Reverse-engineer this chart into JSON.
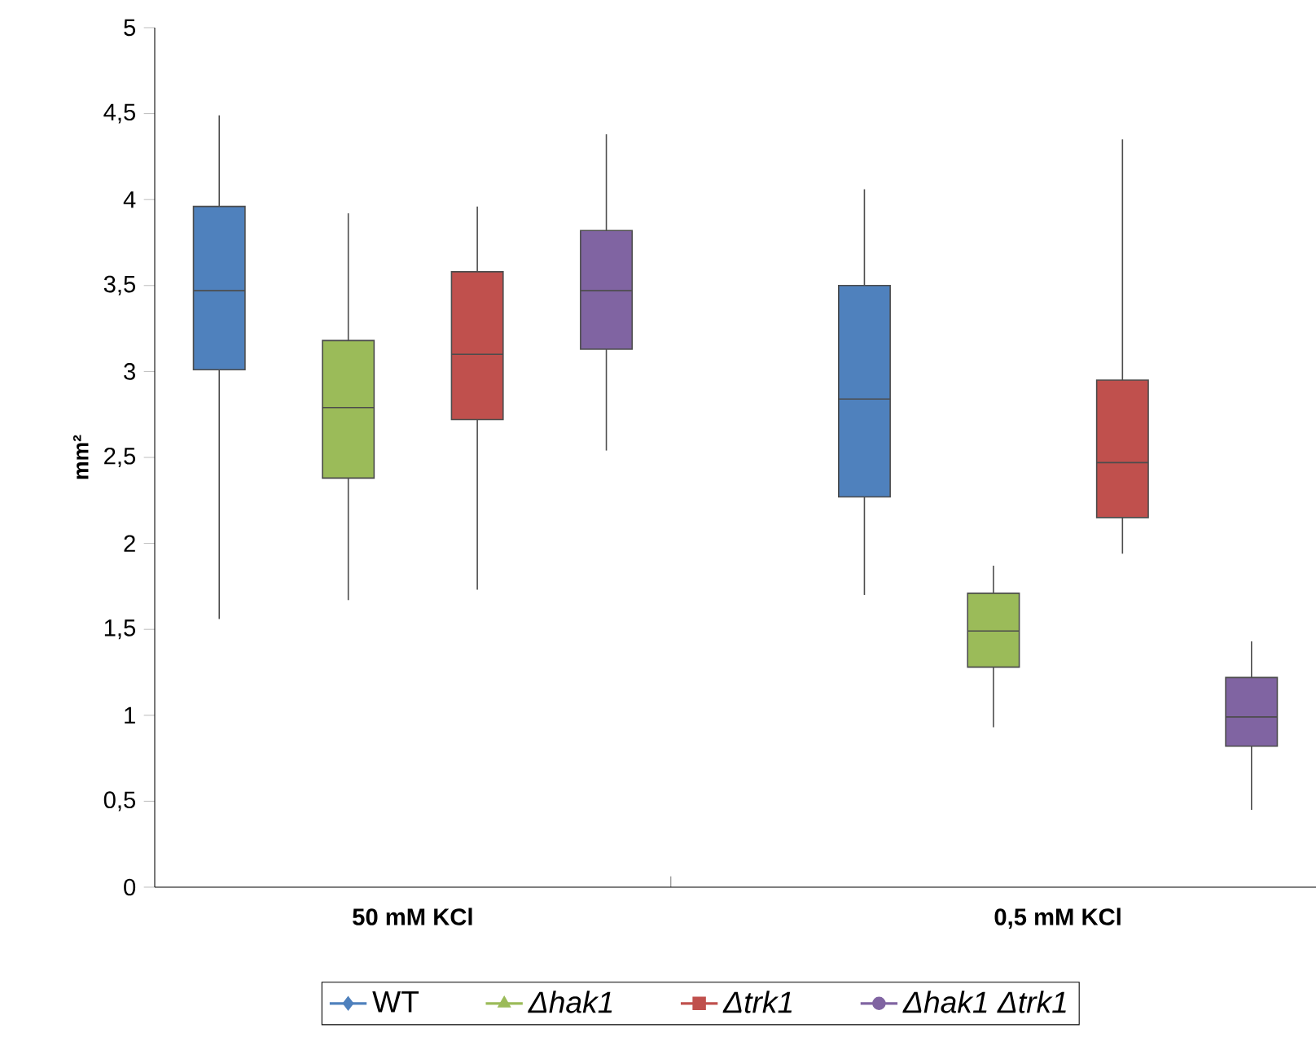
{
  "chart_data": {
    "type": "box",
    "ylabel": "mm²",
    "categories": [
      "50 mM KCl",
      "0,5 mM KCl"
    ],
    "ylim": [
      0,
      5
    ],
    "yticks": [
      0,
      {
        "value": 0.5,
        "label": "0,5"
      },
      1,
      {
        "value": 1.5,
        "label": "1,5"
      },
      2,
      {
        "value": 2.5,
        "label": "2,5"
      },
      3,
      {
        "value": 3.5,
        "label": "3,5"
      },
      4,
      {
        "value": 4.5,
        "label": "4,5"
      },
      5
    ],
    "legend": "bottom",
    "grid": false,
    "series": [
      {
        "name": "WT",
        "color": "#4f81bd",
        "marker": "diamond",
        "boxes": [
          {
            "low": 1.56,
            "q1": 3.01,
            "median": 3.47,
            "q3": 3.96,
            "high": 4.49
          },
          {
            "low": 1.7,
            "q1": 2.27,
            "median": 2.84,
            "q3": 3.5,
            "high": 4.06
          }
        ]
      },
      {
        "name": "*Δhak1*",
        "color": "#9bbb59",
        "marker": "triangle",
        "boxes": [
          {
            "low": 1.67,
            "q1": 2.38,
            "median": 2.79,
            "q3": 3.18,
            "high": 3.92
          },
          {
            "low": 0.93,
            "q1": 1.28,
            "median": 1.49,
            "q3": 1.71,
            "high": 1.87
          }
        ]
      },
      {
        "name": "*Δtrk1*",
        "color": "#c0504d",
        "marker": "square",
        "boxes": [
          {
            "low": 1.73,
            "q1": 2.72,
            "median": 3.1,
            "q3": 3.58,
            "high": 3.96
          },
          {
            "low": 1.94,
            "q1": 2.15,
            "median": 2.47,
            "q3": 2.95,
            "high": 4.35
          }
        ]
      },
      {
        "name": "*Δhak1* *Δtrk1*",
        "color": "#8064a2",
        "marker": "circle",
        "boxes": [
          {
            "low": 2.54,
            "q1": 3.13,
            "median": 3.47,
            "q3": 3.82,
            "high": 4.38
          },
          {
            "low": 0.45,
            "q1": 0.82,
            "median": 0.99,
            "q3": 1.22,
            "high": 1.43
          }
        ]
      }
    ]
  }
}
